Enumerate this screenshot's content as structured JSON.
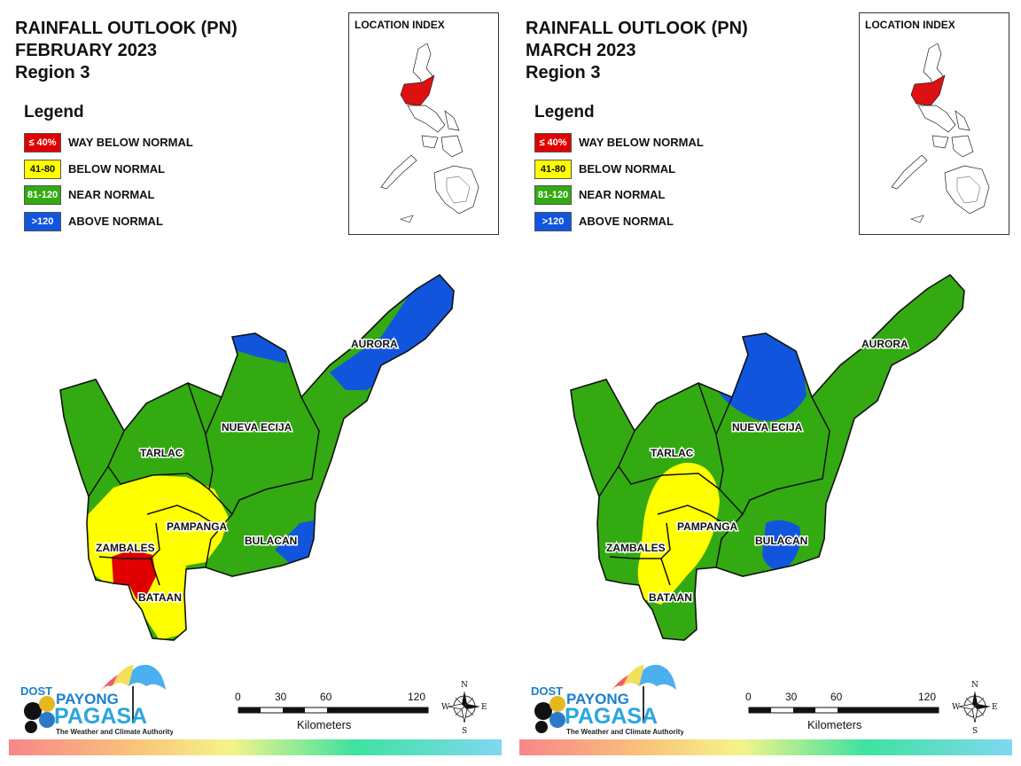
{
  "panels": [
    {
      "title_line1": "RAINFALL OUTLOOK (PN)",
      "title_line2": "FEBRUARY 2023",
      "title_line3": "Region 3",
      "legend_title": "Legend",
      "legend": [
        {
          "range": "≤ 40%",
          "label": "WAY BELOW NORMAL",
          "color": "#e00000"
        },
        {
          "range": "41-80",
          "label": "BELOW NORMAL",
          "color": "#ffff00"
        },
        {
          "range": "81-120",
          "label": "NEAR NORMAL",
          "color": "#33aa11"
        },
        {
          "range": ">120",
          "label": "ABOVE NORMAL",
          "color": "#1155dd"
        }
      ],
      "location_index_title": "LOCATION INDEX",
      "provinces": {
        "aurora": "AURORA",
        "nueva_ecija": "NUEVA ECIJA",
        "tarlac": "TARLAC",
        "pampanga": "PAMPANGA",
        "bulacan": "BULACAN",
        "zambales": "ZAMBALES",
        "bataan": "BATAAN"
      },
      "scale": {
        "ticks": [
          "0",
          "30",
          "60",
          "120"
        ],
        "unit": "Kilometers"
      },
      "logo": {
        "dost": "DOST",
        "payong": "PAYONG",
        "pagasa": "PAGASA",
        "tagline": "The Weather and Climate Authority"
      },
      "compass": {
        "n": "N",
        "s": "S",
        "e": "E",
        "w": "W"
      }
    },
    {
      "title_line1": "RAINFALL OUTLOOK (PN)",
      "title_line2": "MARCH 2023",
      "title_line3": "Region 3",
      "legend_title": "Legend",
      "legend": [
        {
          "range": "≤ 40%",
          "label": "WAY BELOW NORMAL",
          "color": "#e00000"
        },
        {
          "range": "41-80",
          "label": "BELOW NORMAL",
          "color": "#ffff00"
        },
        {
          "range": "81-120",
          "label": "NEAR NORMAL",
          "color": "#33aa11"
        },
        {
          "range": ">120",
          "label": "ABOVE NORMAL",
          "color": "#1155dd"
        }
      ],
      "location_index_title": "LOCATION INDEX",
      "provinces": {
        "aurora": "AURORA",
        "nueva_ecija": "NUEVA ECIJA",
        "tarlac": "TARLAC",
        "pampanga": "PAMPANGA",
        "bulacan": "BULACAN",
        "zambales": "ZAMBALES",
        "bataan": "BATAAN"
      },
      "scale": {
        "ticks": [
          "0",
          "30",
          "60",
          "120"
        ],
        "unit": "Kilometers"
      },
      "logo": {
        "dost": "DOST",
        "payong": "PAYONG",
        "pagasa": "PAGASA",
        "tagline": "The Weather and Climate Authority"
      },
      "compass": {
        "n": "N",
        "s": "S",
        "e": "E",
        "w": "W"
      }
    }
  ]
}
